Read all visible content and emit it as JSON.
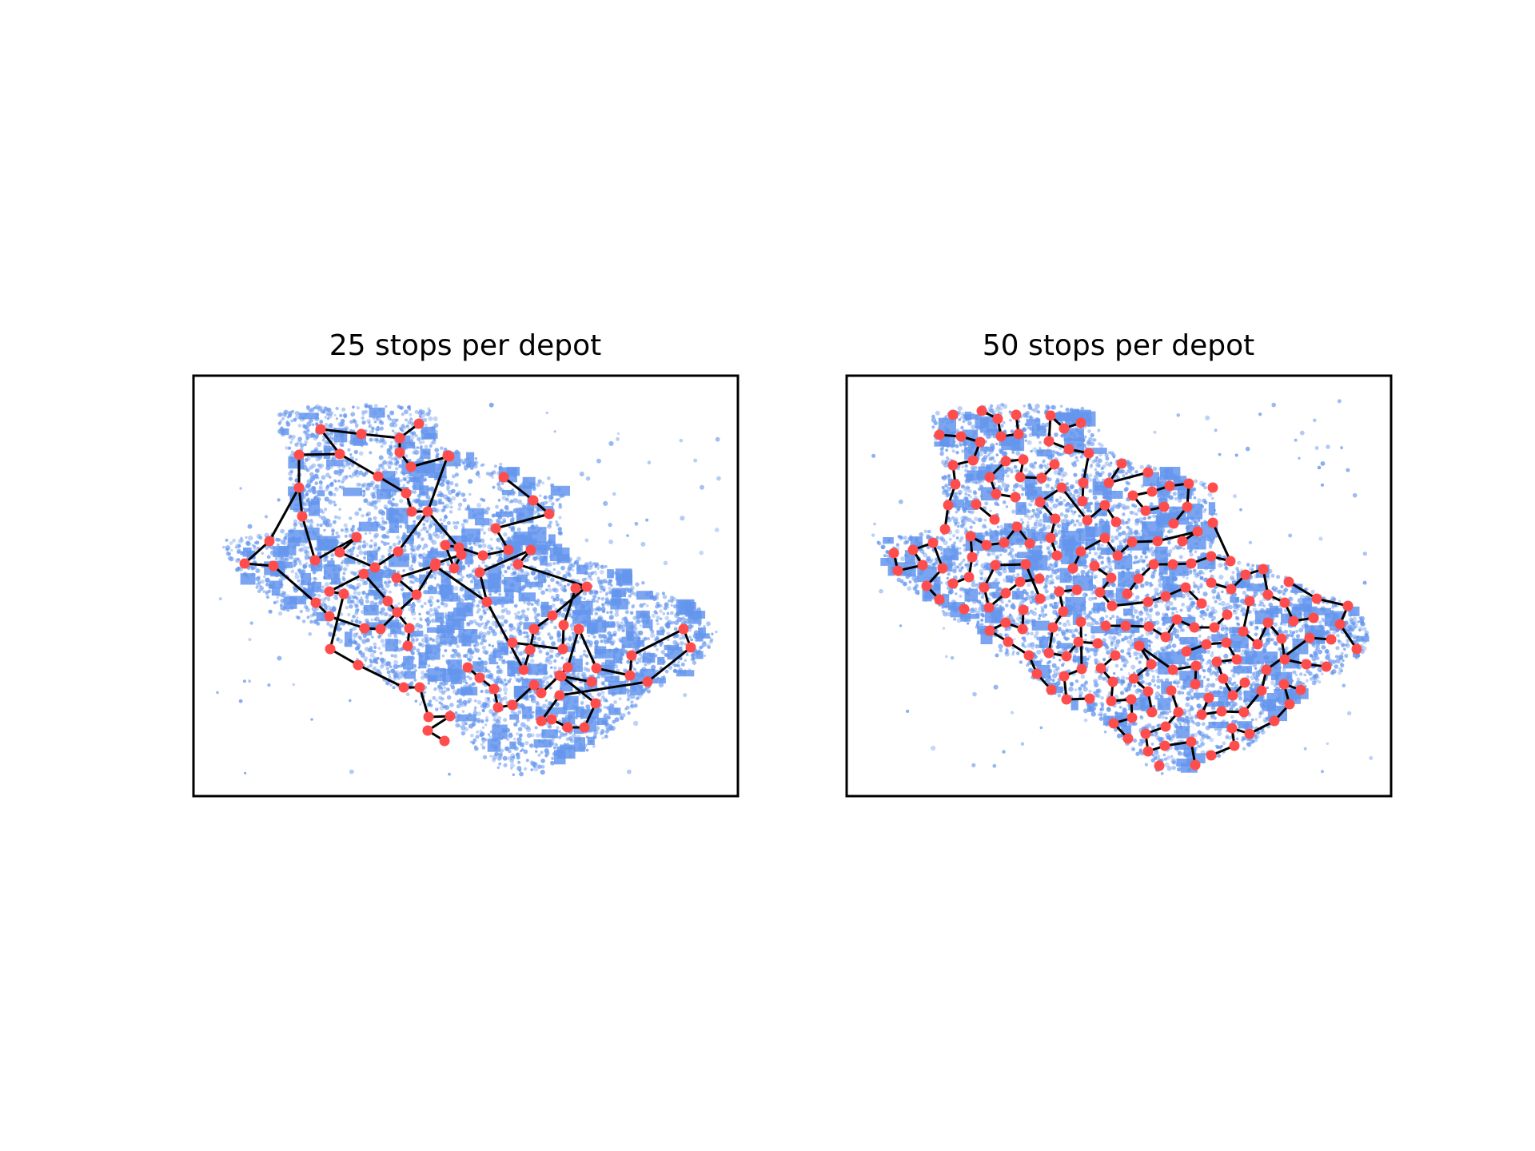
{
  "panels": [
    {
      "title": "25 stops per depot"
    },
    {
      "title": "50 stops per depot"
    }
  ],
  "colors": {
    "points": "#6495ED",
    "stops": "#FF4D4D",
    "edges": "#000000"
  }
}
